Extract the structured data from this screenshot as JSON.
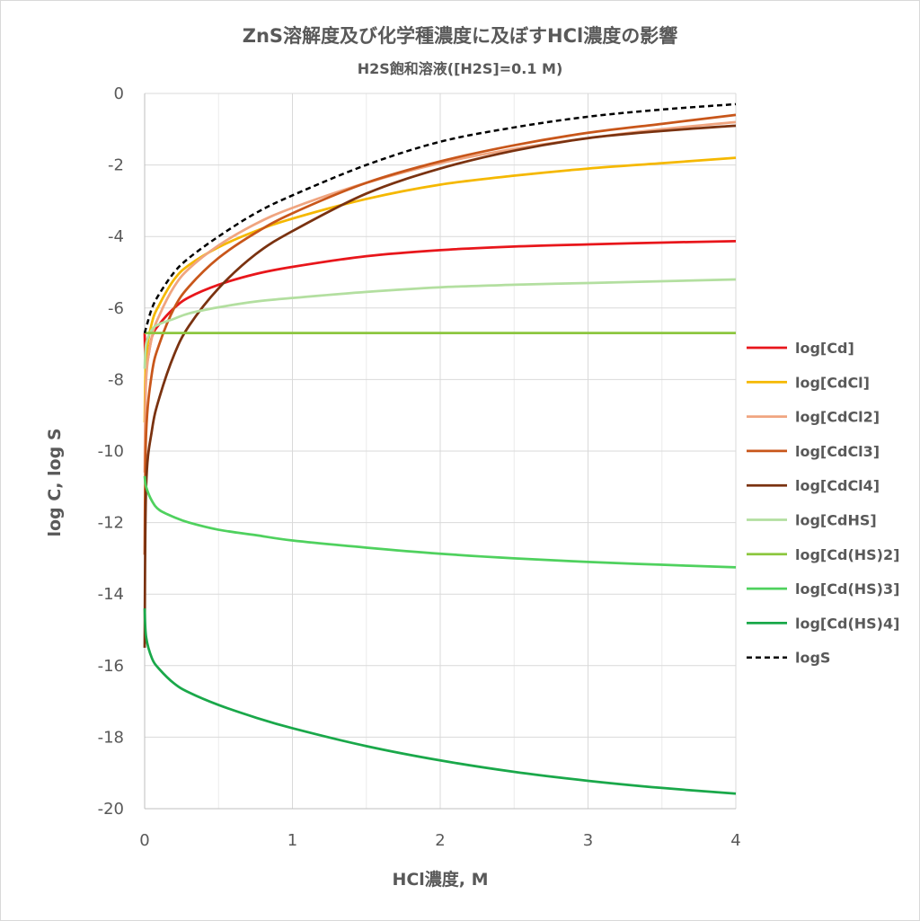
{
  "chart_data": {
    "type": "line",
    "title": "ZnS溶解度及び化学種濃度に及ぼすHCl濃度の影響",
    "subtitle": "H2S飽和溶液([H2S]=0.1 M)",
    "xlabel": "HCl濃度, M",
    "ylabel": "log C, log S",
    "xlim": [
      0,
      4
    ],
    "ylim": [
      -20,
      0
    ],
    "x_ticks": [
      "0",
      "1",
      "2",
      "3",
      "4"
    ],
    "y_ticks": [
      "0",
      "-2",
      "-4",
      "-6",
      "-8",
      "-10",
      "-12",
      "-14",
      "-16",
      "-18",
      "-20"
    ],
    "grid": true,
    "legend_position": "right",
    "x": [
      0,
      0.01,
      0.05,
      0.1,
      0.2,
      0.3,
      0.5,
      0.75,
      1,
      1.5,
      2,
      2.5,
      3,
      3.5,
      4
    ],
    "series": [
      {
        "name": "log[Cd]",
        "color": "#e8161b",
        "dash": false,
        "values": [
          -6.7,
          -7.6,
          -6.8,
          -6.45,
          -6.0,
          -5.7,
          -5.35,
          -5.05,
          -4.85,
          -4.55,
          -4.38,
          -4.28,
          -4.22,
          -4.17,
          -4.13
        ]
      },
      {
        "name": "log[CdCl]",
        "color": "#f5b800",
        "dash": false,
        "values": [
          -9.2,
          -7.4,
          -6.4,
          -5.9,
          -5.2,
          -4.8,
          -4.3,
          -3.85,
          -3.5,
          -2.95,
          -2.55,
          -2.3,
          -2.1,
          -1.95,
          -1.8
        ]
      },
      {
        "name": "log[CdCl2]",
        "color": "#f0a580",
        "dash": false,
        "values": [
          -10.6,
          -8.0,
          -6.8,
          -6.2,
          -5.4,
          -4.9,
          -4.25,
          -3.65,
          -3.2,
          -2.5,
          -1.95,
          -1.55,
          -1.25,
          -1.0,
          -0.8
        ]
      },
      {
        "name": "log[CdCl3]",
        "color": "#c8561a",
        "dash": false,
        "values": [
          -12.9,
          -9.5,
          -7.8,
          -7.0,
          -6.0,
          -5.4,
          -4.6,
          -3.9,
          -3.35,
          -2.5,
          -1.9,
          -1.45,
          -1.1,
          -0.85,
          -0.6
        ]
      },
      {
        "name": "log[CdCl4]",
        "color": "#7a3210",
        "dash": false,
        "values": [
          -15.5,
          -11.0,
          -9.4,
          -8.5,
          -7.3,
          -6.5,
          -5.45,
          -4.5,
          -3.85,
          -2.8,
          -2.1,
          -1.6,
          -1.25,
          -1.05,
          -0.9
        ]
      },
      {
        "name": "log[CdHS]",
        "color": "#b3dfa0",
        "dash": false,
        "values": [
          -7.7,
          -7.0,
          -6.6,
          -6.45,
          -6.3,
          -6.15,
          -5.98,
          -5.82,
          -5.72,
          -5.55,
          -5.42,
          -5.35,
          -5.3,
          -5.25,
          -5.2
        ]
      },
      {
        "name": "log[Cd(HS)2]",
        "color": "#8cc63f",
        "dash": false,
        "values": [
          -6.7,
          -6.7,
          -6.7,
          -6.7,
          -6.7,
          -6.7,
          -6.7,
          -6.7,
          -6.7,
          -6.7,
          -6.7,
          -6.7,
          -6.7,
          -6.7,
          -6.7
        ]
      },
      {
        "name": "log[Cd(HS)3]",
        "color": "#4fd15e",
        "dash": false,
        "values": [
          -10.7,
          -11.0,
          -11.4,
          -11.65,
          -11.85,
          -12.0,
          -12.2,
          -12.35,
          -12.5,
          -12.7,
          -12.87,
          -13.0,
          -13.1,
          -13.18,
          -13.25
        ]
      },
      {
        "name": "log[Cd(HS)4]",
        "color": "#1aa84a",
        "dash": false,
        "values": [
          -14.4,
          -15.2,
          -15.8,
          -16.1,
          -16.5,
          -16.75,
          -17.1,
          -17.45,
          -17.75,
          -18.25,
          -18.65,
          -18.97,
          -19.22,
          -19.42,
          -19.58
        ]
      },
      {
        "name": "logS",
        "color": "#000000",
        "dash": true,
        "values": [
          -6.7,
          -6.55,
          -6.0,
          -5.6,
          -5.0,
          -4.6,
          -4.0,
          -3.35,
          -2.85,
          -2.0,
          -1.35,
          -0.95,
          -0.65,
          -0.45,
          -0.3
        ]
      }
    ]
  }
}
